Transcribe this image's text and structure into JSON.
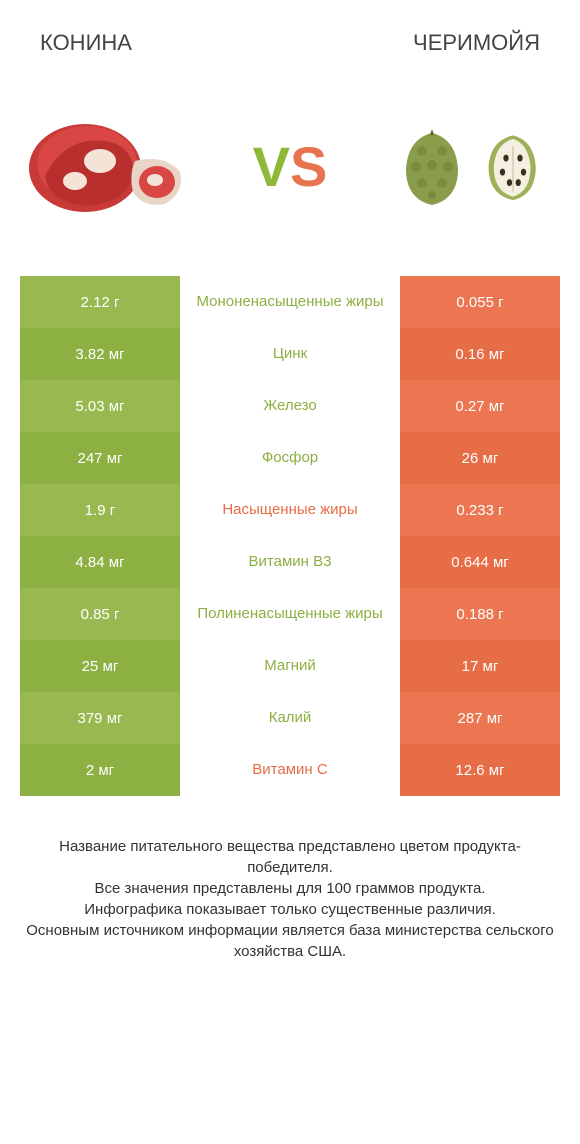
{
  "header": {
    "left_title": "КОНИНА",
    "right_title": "ЧЕРИМОЙЯ"
  },
  "vs": {
    "v": "V",
    "s": "S"
  },
  "colors": {
    "green_odd": "#97b94f",
    "green_even": "#8cb042",
    "orange_odd": "#eb7651",
    "orange_even": "#e76d46",
    "green_text": "#8cb042",
    "orange_text": "#e76d46",
    "body_text": "#333333"
  },
  "rows": [
    {
      "left": "2.12 г",
      "mid": "Мононенасыщенные жиры",
      "right": "0.055 г",
      "mid_color": "green"
    },
    {
      "left": "3.82 мг",
      "mid": "Цинк",
      "right": "0.16 мг",
      "mid_color": "green"
    },
    {
      "left": "5.03 мг",
      "mid": "Железо",
      "right": "0.27 мг",
      "mid_color": "green"
    },
    {
      "left": "247 мг",
      "mid": "Фосфор",
      "right": "26 мг",
      "mid_color": "green"
    },
    {
      "left": "1.9 г",
      "mid": "Насыщенные жиры",
      "right": "0.233 г",
      "mid_color": "orange"
    },
    {
      "left": "4.84 мг",
      "mid": "Витамин B3",
      "right": "0.644 мг",
      "mid_color": "green"
    },
    {
      "left": "0.85 г",
      "mid": "Полиненасыщенные жиры",
      "right": "0.188 г",
      "mid_color": "green"
    },
    {
      "left": "25 мг",
      "mid": "Магний",
      "right": "17 мг",
      "mid_color": "green"
    },
    {
      "left": "379 мг",
      "mid": "Калий",
      "right": "287 мг",
      "mid_color": "green"
    },
    {
      "left": "2 мг",
      "mid": "Витамин C",
      "right": "12.6 мг",
      "mid_color": "orange"
    }
  ],
  "footer": {
    "line1": "Название питательного вещества представлено цветом продукта-победителя.",
    "line2": "Все значения представлены для 100 граммов продукта.",
    "line3": "Инфографика показывает только существенные различия.",
    "line4": "Основным источником информации является база министерства сельского хозяйства США."
  }
}
